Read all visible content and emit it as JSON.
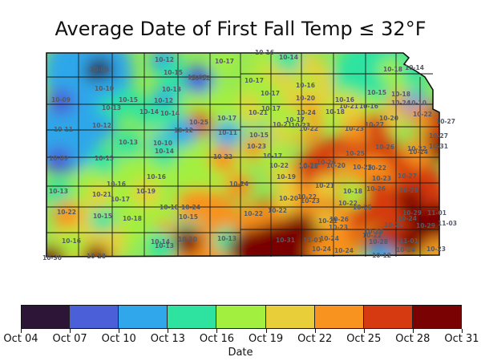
{
  "title": "Average Date of First Fall Temp ≤ 32°F",
  "colorbar": {
    "label": "Date",
    "ticks": [
      "Oct 04",
      "Oct 07",
      "Oct 10",
      "Oct 13",
      "Oct 16",
      "Oct 19",
      "Oct 22",
      "Oct 25",
      "Oct 28",
      "Oct 31"
    ],
    "colors": [
      "#2d1538",
      "#4a5fd8",
      "#2fa7ea",
      "#2ee3a0",
      "#a3ef3f",
      "#e8cf3a",
      "#f7931e",
      "#d63a10",
      "#7a0202"
    ]
  },
  "map_labels": [
    {
      "text": "10-16",
      "value": 16
    },
    {
      "text": "10-05",
      "value": 5
    },
    {
      "text": "10-12",
      "value": 12
    },
    {
      "text": "10-15",
      "value": 15
    },
    {
      "text": "10-17",
      "value": 17
    },
    {
      "text": "10-14",
      "value": 14
    },
    {
      "text": "10-12",
      "value": 12
    },
    {
      "text": "10-18",
      "value": 18
    },
    {
      "text": "10-14",
      "value": 14
    },
    {
      "text": "10-09",
      "value": 9
    },
    {
      "text": "10-10",
      "value": 10
    },
    {
      "text": "10-15",
      "value": 15
    },
    {
      "text": "10-13",
      "value": 13
    },
    {
      "text": "10-09",
      "value": 9
    },
    {
      "text": "10-27",
      "value": 27
    },
    {
      "text": "10-17",
      "value": 17
    },
    {
      "text": "10-16",
      "value": 16
    },
    {
      "text": "10-15",
      "value": 15
    },
    {
      "text": "10-18",
      "value": 18
    },
    {
      "text": "10-12",
      "value": 12
    },
    {
      "text": "10-13",
      "value": 13
    },
    {
      "text": "10-14",
      "value": 14
    },
    {
      "text": "10-17",
      "value": 17
    },
    {
      "text": "10-20",
      "value": 20
    },
    {
      "text": "10-24",
      "value": 24
    },
    {
      "text": "10-16",
      "value": 16
    },
    {
      "text": "10-10",
      "value": 10
    },
    {
      "text": "10-11",
      "value": 11
    },
    {
      "text": "10-25",
      "value": 25
    },
    {
      "text": "10-16",
      "value": 16
    },
    {
      "text": "10-12",
      "value": 12
    },
    {
      "text": "10-14",
      "value": 14
    },
    {
      "text": "10-21",
      "value": 21
    },
    {
      "text": "10-23",
      "value": 23
    },
    {
      "text": "10-20",
      "value": 20
    },
    {
      "text": "10-22",
      "value": 22
    },
    {
      "text": "10-27",
      "value": 27
    },
    {
      "text": "10-24",
      "value": 24
    },
    {
      "text": "10-17",
      "value": 17
    },
    {
      "text": "10-23",
      "value": 23
    },
    {
      "text": "10-27",
      "value": 27
    },
    {
      "text": "10-11",
      "value": 11
    },
    {
      "text": "10-12",
      "value": 12
    },
    {
      "text": "10-10",
      "value": 10
    },
    {
      "text": "10-15",
      "value": 15
    },
    {
      "text": "10-13",
      "value": 13
    },
    {
      "text": "10-14",
      "value": 14
    },
    {
      "text": "10-22",
      "value": 22
    },
    {
      "text": "10-21",
      "value": 21
    },
    {
      "text": "10-31",
      "value": 31
    },
    {
      "text": "10-09",
      "value": 9
    },
    {
      "text": "10-15",
      "value": 15
    },
    {
      "text": "10-16",
      "value": 16
    },
    {
      "text": "10-23",
      "value": 23
    },
    {
      "text": "10-22",
      "value": 22
    },
    {
      "text": "10-24",
      "value": 24
    },
    {
      "text": "10-20",
      "value": 20
    },
    {
      "text": "10-25",
      "value": 25
    },
    {
      "text": "10-26",
      "value": 26
    },
    {
      "text": "10-22",
      "value": 22
    },
    {
      "text": "10-13",
      "value": 13
    },
    {
      "text": "10-16",
      "value": 16
    },
    {
      "text": "10-24",
      "value": 24
    },
    {
      "text": "10-19",
      "value": 19
    },
    {
      "text": "10-18",
      "value": 18
    },
    {
      "text": "10-26",
      "value": 26
    },
    {
      "text": "10-22",
      "value": 22
    },
    {
      "text": "10-15",
      "value": 15
    },
    {
      "text": "10-21",
      "value": 21
    },
    {
      "text": "10-26",
      "value": 26
    },
    {
      "text": "10-24",
      "value": 24
    },
    {
      "text": "10-28",
      "value": 28
    },
    {
      "text": "10-22",
      "value": 22
    },
    {
      "text": "10-17",
      "value": 17
    },
    {
      "text": "10-19",
      "value": 19
    },
    {
      "text": "10-23",
      "value": 23
    },
    {
      "text": "10-27",
      "value": 27
    },
    {
      "text": "10-22",
      "value": 22
    },
    {
      "text": "10-22",
      "value": 22
    },
    {
      "text": "10-15",
      "value": 15
    },
    {
      "text": "10-22",
      "value": 22
    },
    {
      "text": "10-18",
      "value": 18
    },
    {
      "text": "10-22",
      "value": 22
    },
    {
      "text": "10-24",
      "value": 24
    },
    {
      "text": "10-23",
      "value": 23
    },
    {
      "text": "10-26",
      "value": 26
    },
    {
      "text": "10-29",
      "value": 29
    },
    {
      "text": "11-01",
      "value": 32
    },
    {
      "text": "11-03",
      "value": 34
    },
    {
      "text": "10-16",
      "value": 16
    },
    {
      "text": "10-13",
      "value": 13
    },
    {
      "text": "10-21",
      "value": 21
    },
    {
      "text": "10-22",
      "value": 22
    },
    {
      "text": "10-28",
      "value": 28
    },
    {
      "text": "10-25",
      "value": 25
    },
    {
      "text": "10-25",
      "value": 25
    },
    {
      "text": "10-23",
      "value": 23
    },
    {
      "text": "10-24",
      "value": 24
    },
    {
      "text": "10-22",
      "value": 22
    },
    {
      "text": "10-30",
      "value": 30
    },
    {
      "text": "10-31",
      "value": 31
    },
    {
      "text": "11-01",
      "value": 32
    },
    {
      "text": "10-29",
      "value": 29
    },
    {
      "text": "10-28",
      "value": 28
    },
    {
      "text": "10-24",
      "value": 24
    },
    {
      "text": "11-01",
      "value": 32
    },
    {
      "text": "10-23",
      "value": 23
    },
    {
      "text": "10-24",
      "value": 24
    },
    {
      "text": "10-30",
      "value": 30
    },
    {
      "text": "10-28",
      "value": 28
    },
    {
      "text": "10-24",
      "value": 24
    },
    {
      "text": "10-12",
      "value": 12
    },
    {
      "text": "10-13",
      "value": 13
    },
    {
      "text": "10-14",
      "value": 14
    },
    {
      "text": "10-21",
      "value": 21
    },
    {
      "text": "10-20",
      "value": 20
    },
    {
      "text": "10-18",
      "value": 18
    },
    {
      "text": "10-22",
      "value": 22
    },
    {
      "text": "10-17",
      "value": 17
    },
    {
      "text": "10-18",
      "value": 18
    },
    {
      "text": "10-17",
      "value": 17
    },
    {
      "text": "10-17",
      "value": 17
    },
    {
      "text": "10-21",
      "value": 21
    },
    {
      "text": "10-25",
      "value": 25
    },
    {
      "text": "10-23",
      "value": 23
    }
  ]
}
